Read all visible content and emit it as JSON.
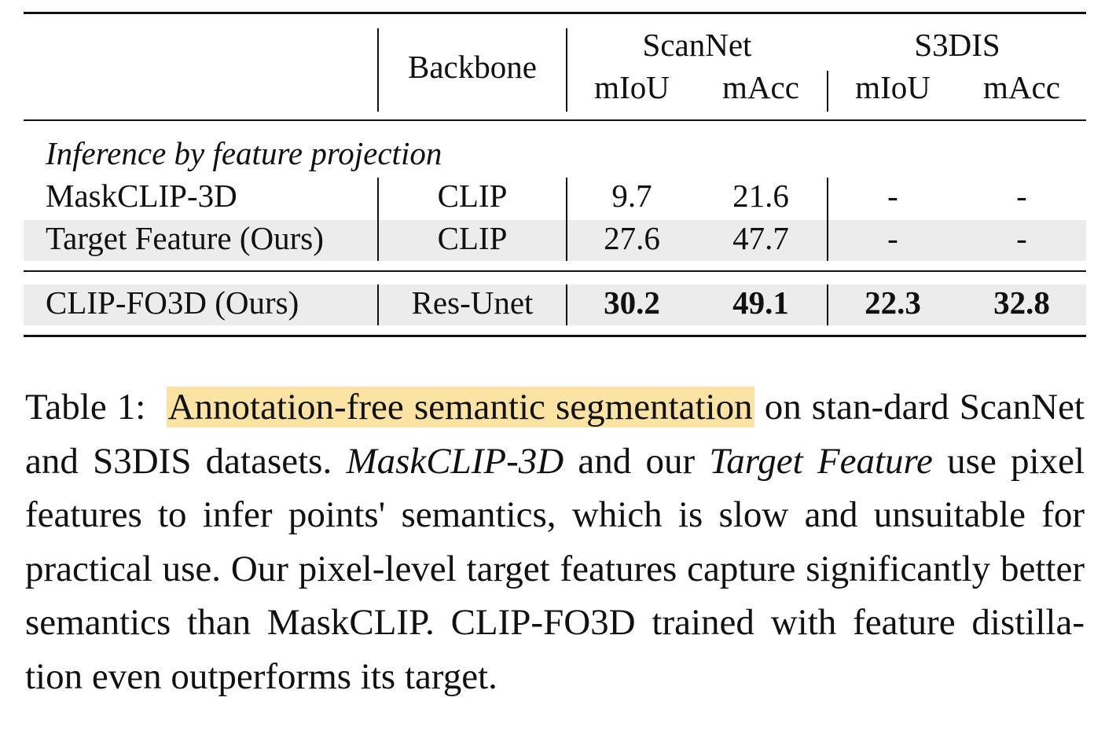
{
  "table": {
    "header": {
      "backbone": "Backbone",
      "groups": [
        {
          "name": "ScanNet",
          "cols": [
            "mIoU",
            "mAcc"
          ]
        },
        {
          "name": "S3DIS",
          "cols": [
            "mIoU",
            "mAcc"
          ]
        }
      ]
    },
    "section_label": "Inference by feature projection",
    "rows": [
      {
        "method": "MaskCLIP-3D",
        "backbone": "CLIP",
        "values": [
          "9.7",
          "21.6",
          "-",
          "-"
        ]
      },
      {
        "method": "Target Feature (Ours)",
        "backbone": "CLIP",
        "values": [
          "27.6",
          "47.7",
          "-",
          "-"
        ]
      },
      {
        "method": "CLIP-FO3D (Ours)",
        "backbone": "Res-Unet",
        "values": [
          "30.2",
          "49.1",
          "22.3",
          "32.8"
        ]
      }
    ]
  },
  "caption": {
    "label": "Table 1:",
    "highlight": "Annotation-free semantic segmentation",
    "t1": " on stan-dard ScanNet and S3DIS datasets. ",
    "i1": "MaskCLIP-3D",
    "t2": " and our ",
    "i2": "Target Feature",
    "t3": " use pixel features to infer points' semantics, which is slow and unsuitable for practical use. Our pixel-level target features capture significantly better semantics than MaskCLIP. CLIP-FO3D trained with feature distilla-tion even outperforms its target."
  },
  "colors": {
    "highlight": "#fbe3a4",
    "row_shade": "#ececec"
  }
}
